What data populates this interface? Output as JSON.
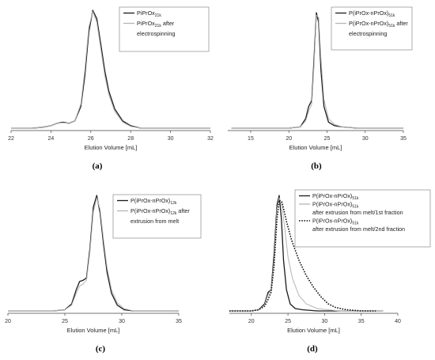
{
  "chart_data": [
    {
      "type": "line",
      "caption": "(a)",
      "xlabel": "Elution Volume [mL]",
      "xlim": [
        22,
        32
      ],
      "xticks": [
        22,
        24,
        26,
        28,
        30,
        32
      ],
      "ylim": [
        0,
        1
      ],
      "legend_position": "top-right",
      "series": [
        {
          "name": "PiPrOx",
          "subscript": "21k",
          "suffix": "",
          "color": "#1a1a1a",
          "dash": "",
          "x": [
            22.0,
            23.0,
            23.5,
            24.0,
            24.3,
            24.6,
            24.9,
            25.2,
            25.5,
            25.7,
            25.9,
            26.1,
            26.3,
            26.5,
            26.7,
            26.9,
            27.2,
            27.6,
            28.0,
            28.5,
            29,
            30,
            31,
            32
          ],
          "y": [
            0.02,
            0.02,
            0.025,
            0.04,
            0.06,
            0.07,
            0.06,
            0.08,
            0.2,
            0.45,
            0.82,
            1.0,
            0.93,
            0.72,
            0.5,
            0.33,
            0.18,
            0.08,
            0.04,
            0.02,
            0.02,
            0.02,
            0.02,
            0.02
          ]
        },
        {
          "name": "PiPrOx",
          "subscript": "21k",
          "suffix": "after",
          "line2": "electrospinning",
          "color": "#b5b5b5",
          "dash": "",
          "x": [
            22.0,
            23.0,
            23.5,
            24.0,
            24.3,
            24.6,
            24.9,
            25.2,
            25.5,
            25.7,
            25.9,
            26.1,
            26.3,
            26.5,
            26.7,
            26.9,
            27.2,
            27.6,
            28.0,
            28.5,
            29,
            30,
            31,
            32
          ],
          "y": [
            0.02,
            0.02,
            0.025,
            0.04,
            0.06,
            0.065,
            0.06,
            0.08,
            0.22,
            0.5,
            0.86,
            0.99,
            0.9,
            0.68,
            0.46,
            0.3,
            0.16,
            0.07,
            0.035,
            0.02,
            0.02,
            0.02,
            0.02,
            0.02
          ]
        }
      ]
    },
    {
      "type": "line",
      "caption": "(b)",
      "xlabel": "Elution Volume [mL]",
      "xlim": [
        12,
        35
      ],
      "xticks": [
        15,
        20,
        25,
        30,
        35
      ],
      "ylim": [
        0,
        1
      ],
      "legend_position": "top-right",
      "series": [
        {
          "name": "P(iPrOx-nPrOx)",
          "subscript": "51k",
          "suffix": "",
          "color": "#1a1a1a",
          "dash": "",
          "x": [
            12.5,
            16,
            20,
            21.5,
            22.2,
            22.6,
            23.0,
            23.3,
            23.6,
            23.9,
            24.2,
            24.6,
            25.2,
            26,
            27,
            29,
            32,
            35
          ],
          "y": [
            0.02,
            0.02,
            0.02,
            0.03,
            0.1,
            0.2,
            0.25,
            0.6,
            0.98,
            0.9,
            0.5,
            0.2,
            0.07,
            0.04,
            0.03,
            0.02,
            0.02,
            0.02
          ]
        },
        {
          "name": "P(iPrOx-nPrOx)",
          "subscript": "51k",
          "suffix": "after",
          "line2": "electrospinning",
          "color": "#b5b5b5",
          "dash": "",
          "x": [
            12.5,
            16,
            20,
            21.5,
            22.2,
            22.6,
            23.0,
            23.3,
            23.6,
            23.9,
            24.2,
            24.6,
            25.2,
            26,
            27,
            29,
            32,
            35
          ],
          "y": [
            0.02,
            0.02,
            0.02,
            0.03,
            0.08,
            0.16,
            0.22,
            0.55,
            0.96,
            0.94,
            0.6,
            0.26,
            0.1,
            0.05,
            0.03,
            0.02,
            0.02,
            0.02
          ]
        }
      ]
    },
    {
      "type": "line",
      "caption": "(c)",
      "xlabel": "Elution Volume [mL]",
      "xlim": [
        20,
        35
      ],
      "xticks": [
        20,
        25,
        30,
        35
      ],
      "ylim": [
        0,
        1
      ],
      "legend_position": "top-right",
      "series": [
        {
          "name": "P(iPrOx-nPrOx)",
          "subscript": "12k",
          "suffix": "",
          "color": "#1a1a1a",
          "dash": "",
          "x": [
            20,
            22,
            24,
            25,
            25.6,
            26.0,
            26.3,
            26.6,
            26.9,
            27.2,
            27.5,
            27.8,
            28.1,
            28.4,
            28.7,
            29.1,
            29.6,
            30.2,
            31,
            32,
            35
          ],
          "y": [
            0.02,
            0.02,
            0.02,
            0.03,
            0.08,
            0.2,
            0.27,
            0.28,
            0.3,
            0.55,
            0.9,
            1.0,
            0.85,
            0.58,
            0.35,
            0.17,
            0.07,
            0.03,
            0.02,
            0.02,
            0.02
          ]
        },
        {
          "name": "P(iPrOx-nPrOx)",
          "subscript": "12k",
          "suffix": "after",
          "line2": "extrusion from melt",
          "color": "#b5b5b5",
          "dash": "",
          "x": [
            20,
            22,
            24,
            25,
            25.6,
            26.0,
            26.3,
            26.6,
            26.9,
            27.2,
            27.5,
            27.8,
            28.1,
            28.4,
            28.7,
            29.1,
            29.6,
            30.2,
            31,
            32,
            35
          ],
          "y": [
            0.02,
            0.02,
            0.02,
            0.03,
            0.07,
            0.17,
            0.23,
            0.25,
            0.28,
            0.52,
            0.86,
            0.98,
            0.88,
            0.62,
            0.39,
            0.2,
            0.09,
            0.04,
            0.02,
            0.02,
            0.02
          ]
        }
      ]
    },
    {
      "type": "line",
      "caption": "(d)",
      "xlabel": "Elution Volume [mL]",
      "xlim": [
        17,
        40
      ],
      "xticks": [
        20,
        25,
        30,
        35,
        40
      ],
      "ylim": [
        0,
        1
      ],
      "legend_position": "top-right",
      "series": [
        {
          "name": "P(iPrOx-nPrOx)",
          "subscript": "51k",
          "suffix": "",
          "color": "#1a1a1a",
          "dash": "",
          "x": [
            17,
            20,
            21,
            21.8,
            22.3,
            22.7,
            23.1,
            23.5,
            23.8,
            24.1,
            24.4,
            24.8,
            25.3,
            26,
            27,
            29,
            32,
            35,
            38
          ],
          "y": [
            0.02,
            0.02,
            0.03,
            0.08,
            0.18,
            0.2,
            0.5,
            0.92,
            1.0,
            0.8,
            0.45,
            0.2,
            0.08,
            0.04,
            0.03,
            0.02,
            0.02,
            0.02,
            0.02
          ]
        },
        {
          "name": "P(iPrOx-nPrOx)",
          "subscript": "51k",
          "suffix": "",
          "line2": "after extrusion from melt/1st fraction",
          "color": "#b5b5b5",
          "dash": "",
          "x": [
            17,
            20,
            21,
            21.8,
            22.3,
            22.7,
            23.1,
            23.5,
            23.8,
            24.2,
            24.6,
            25.0,
            25.6,
            26.5,
            27.5,
            29,
            32,
            35,
            38
          ],
          "y": [
            0.02,
            0.02,
            0.03,
            0.07,
            0.16,
            0.2,
            0.45,
            0.88,
            0.98,
            0.9,
            0.7,
            0.48,
            0.3,
            0.15,
            0.08,
            0.04,
            0.02,
            0.02,
            0.02
          ]
        },
        {
          "name": "P(iPrOx-nPrOx)",
          "subscript": "51k",
          "suffix": "",
          "line2": "after extrusion from melt/2nd fraction",
          "color": "#111111",
          "dash": "1.6,1.6",
          "x": [
            17,
            20,
            21,
            21.8,
            22.3,
            22.7,
            23.1,
            23.5,
            23.8,
            24.2,
            24.8,
            25.5,
            26.5,
            27.5,
            28.5,
            29.5,
            30.5,
            31.5,
            33,
            35,
            37
          ],
          "y": [
            0.02,
            0.02,
            0.03,
            0.06,
            0.12,
            0.18,
            0.4,
            0.8,
            0.96,
            0.94,
            0.78,
            0.62,
            0.45,
            0.32,
            0.22,
            0.14,
            0.08,
            0.05,
            0.03,
            0.02,
            0.02
          ]
        }
      ]
    }
  ]
}
